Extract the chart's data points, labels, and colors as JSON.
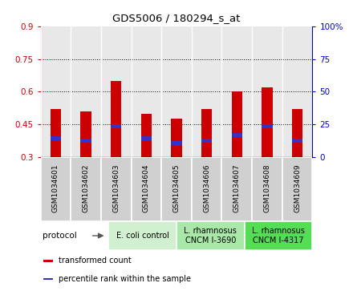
{
  "title": "GDS5006 / 180294_s_at",
  "samples": [
    "GSM1034601",
    "GSM1034602",
    "GSM1034603",
    "GSM1034604",
    "GSM1034605",
    "GSM1034606",
    "GSM1034607",
    "GSM1034608",
    "GSM1034609"
  ],
  "transformed_count": [
    0.52,
    0.51,
    0.65,
    0.5,
    0.475,
    0.52,
    0.6,
    0.62,
    0.52
  ],
  "bar_bottom": 0.3,
  "percentile_values": [
    0.385,
    0.375,
    0.44,
    0.385,
    0.365,
    0.375,
    0.4,
    0.44,
    0.375
  ],
  "percentile_thickness": 0.018,
  "ylim": [
    0.3,
    0.9
  ],
  "yticks_left": [
    0.3,
    0.45,
    0.6,
    0.75,
    0.9
  ],
  "yticks_right": [
    0,
    25,
    50,
    75,
    100
  ],
  "bar_color": "#cc0000",
  "percentile_color": "#3333cc",
  "grid_yticks": [
    0.45,
    0.6,
    0.75
  ],
  "protocol_groups": [
    {
      "label": "E. coli control",
      "start": 0,
      "end": 3,
      "color": "#d0f0d0"
    },
    {
      "label": "L. rhamnosus\nCNCM I-3690",
      "start": 3,
      "end": 6,
      "color": "#aae8aa"
    },
    {
      "label": "L. rhamnosus\nCNCM I-4317",
      "start": 6,
      "end": 9,
      "color": "#55dd55"
    }
  ],
  "left_tick_color": "#cc0000",
  "right_tick_color": "#0000cc",
  "bar_width": 0.35,
  "plot_bg_color": "#e8e8e8",
  "sample_cell_color": "#d0d0d0",
  "legend_items": [
    {
      "label": "transformed count",
      "color": "#cc0000"
    },
    {
      "label": "percentile rank within the sample",
      "color": "#3333cc"
    }
  ]
}
